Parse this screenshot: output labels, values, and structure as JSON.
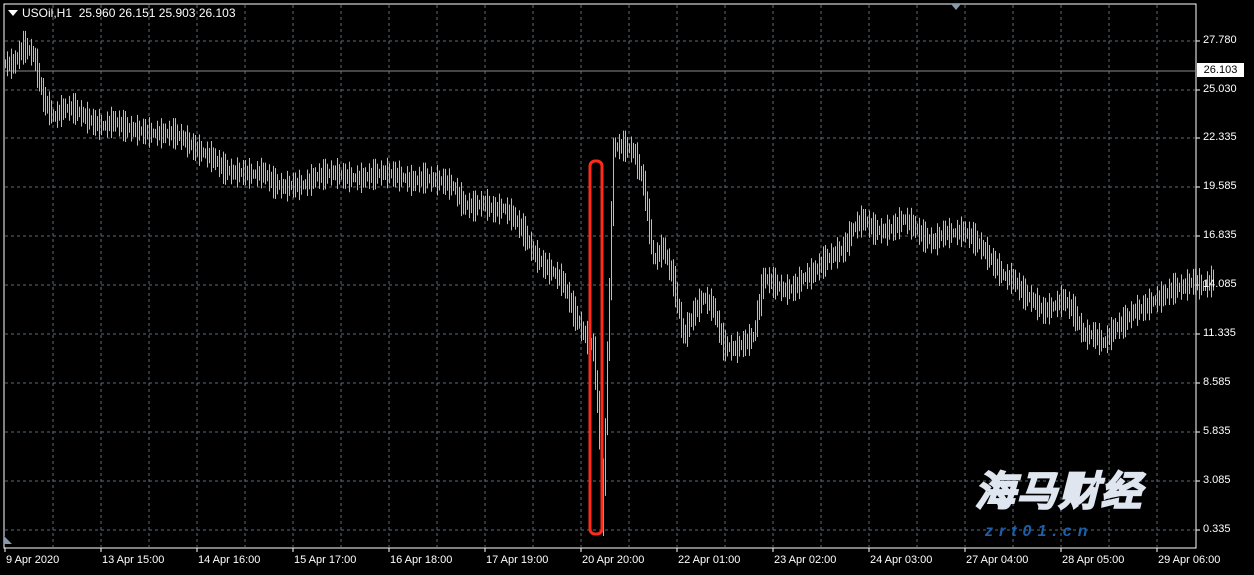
{
  "header": {
    "symbol": "USOil,H1",
    "open": "25.960",
    "high": "26.151",
    "low": "25.903",
    "close": "26.103"
  },
  "current_price": "26.103",
  "watermark": {
    "cn": "海马财经",
    "url": "zrt01.cn"
  },
  "colors": {
    "background": "#000000",
    "candle": "#66ff44",
    "grid": "#5a6a7a",
    "highlight": "#ff2a1a",
    "axis": "#ffffff"
  },
  "chart_data": {
    "type": "candlestick",
    "title": "USOil,H1",
    "grid": true,
    "ylim": [
      0.0,
      29.0
    ],
    "yticks": [
      "27.780",
      "25.030",
      "22.335",
      "19.585",
      "16.835",
      "14.085",
      "11.335",
      "8.585",
      "5.835",
      "3.085",
      "0.335"
    ],
    "xticks": [
      "9 Apr 2020",
      "13 Apr 15:00",
      "14 Apr 16:00",
      "15 Apr 17:00",
      "16 Apr 18:00",
      "17 Apr 19:00",
      "20 Apr 20:00",
      "22 Apr 01:00",
      "23 Apr 02:00",
      "24 Apr 03:00",
      "27 Apr 04:00",
      "28 Apr 05:00",
      "29 Apr 06:00"
    ],
    "close": [
      26.5,
      27.5,
      27,
      24.5,
      23.5,
      24,
      24,
      23.6,
      23.2,
      23,
      23.3,
      23,
      22.8,
      22.7,
      22.6,
      22.6,
      22.6,
      22.3,
      21.8,
      21.5,
      21.2,
      20.6,
      20.4,
      20.4,
      20.3,
      20.4,
      19.8,
      19.6,
      19.7,
      19.7,
      20.1,
      20.3,
      20.4,
      20.2,
      20.1,
      20.1,
      20.3,
      20.4,
      20.3,
      20.1,
      19.9,
      20.1,
      20,
      19.9,
      19.6,
      18.6,
      18.5,
      18.7,
      18.3,
      18.4,
      17.9,
      17.1,
      15.9,
      15.2,
      14.8,
      14.2,
      12.6,
      11.4,
      10.5,
      2.5,
      21.8,
      21.9,
      21.6,
      19.8,
      15.5,
      16.2,
      14.3,
      11.2,
      12.5,
      13.4,
      12.8,
      10.7,
      10.5,
      10.8,
      11.2,
      14.5,
      14.2,
      13.8,
      13.9,
      14.5,
      14.8,
      15.4,
      15.8,
      16.1,
      17.3,
      17.8,
      17.2,
      17.1,
      17.3,
      17.8,
      17.4,
      16.8,
      16.5,
      17,
      17,
      17.1,
      16.7,
      16.1,
      15.3,
      14.6,
      14.4,
      13.6,
      13.2,
      12.6,
      12.9,
      13.3,
      12.6,
      11.3,
      11.3,
      10.8,
      11.6,
      12,
      12.6,
      12.8,
      13.2,
      13.5,
      13.9,
      14,
      14.3,
      14,
      14.4
    ],
    "minimum_low": 0.0,
    "annotation": "red rounded rectangle highlighting the 20 Apr drop"
  }
}
